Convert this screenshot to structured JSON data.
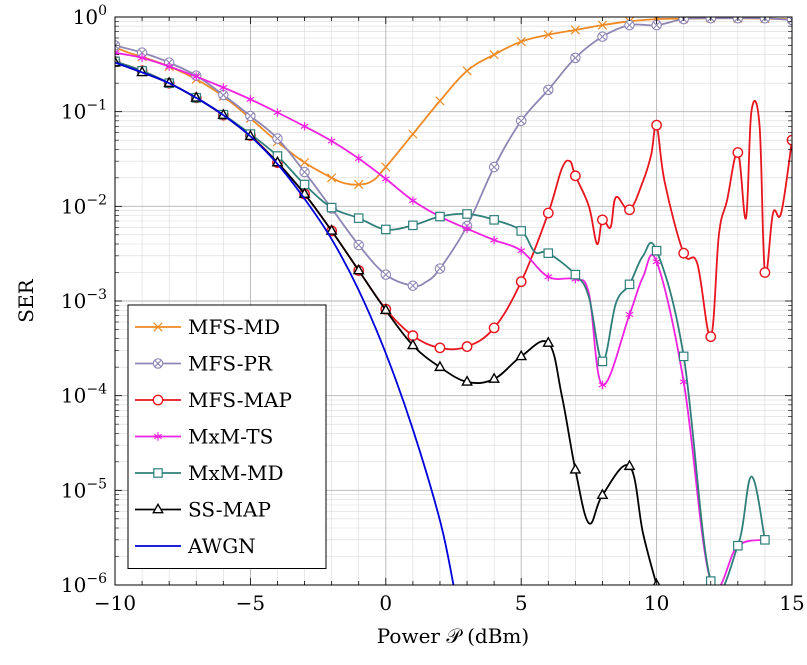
{
  "chart_data": {
    "type": "line",
    "xlabel": "Power 𝒫 (dBm)",
    "ylabel": "SER",
    "xlim": [
      -10,
      15
    ],
    "ylim": [
      1e-06,
      1
    ],
    "yscale": "log",
    "grid": "major and minor",
    "legend_position": "lower-left",
    "xticks": [
      -10,
      -5,
      0,
      5,
      10,
      15
    ],
    "xtick_labels": [
      "−10",
      "−5",
      "0",
      "5",
      "10",
      "15"
    ],
    "yticks": [
      {
        "value": 1,
        "base": "10",
        "exp": "0"
      },
      {
        "value": 0.1,
        "base": "10",
        "exp": "−1"
      },
      {
        "value": 0.01,
        "base": "10",
        "exp": "−2"
      },
      {
        "value": 0.001,
        "base": "10",
        "exp": "−3"
      },
      {
        "value": 0.0001,
        "base": "10",
        "exp": "−4"
      },
      {
        "value": 1e-05,
        "base": "10",
        "exp": "−5"
      },
      {
        "value": 1e-06,
        "base": "10",
        "exp": "−6"
      }
    ],
    "series": [
      {
        "name": "MFS-MD",
        "color": "#f08a24",
        "marker": "x",
        "points": [
          [
            -10,
            0.48
          ],
          [
            -9.5,
            0.42
          ],
          [
            -9,
            0.38
          ],
          [
            -8,
            0.3
          ],
          [
            -7,
            0.22
          ],
          [
            -6,
            0.145
          ],
          [
            -5,
            0.085
          ],
          [
            -4,
            0.048
          ],
          [
            -3,
            0.029
          ],
          [
            -2,
            0.02
          ],
          [
            -1.5,
            0.0175
          ],
          [
            -1,
            0.017
          ],
          [
            -0.5,
            0.0185
          ],
          [
            0,
            0.026
          ],
          [
            1,
            0.058
          ],
          [
            2,
            0.13
          ],
          [
            3,
            0.27
          ],
          [
            4,
            0.4
          ],
          [
            5,
            0.55
          ],
          [
            6,
            0.65
          ],
          [
            7,
            0.73
          ],
          [
            8,
            0.82
          ],
          [
            9,
            0.9
          ],
          [
            10,
            0.95
          ],
          [
            11,
            0.96
          ],
          [
            12,
            0.97
          ],
          [
            13,
            0.97
          ],
          [
            14,
            0.96
          ],
          [
            15,
            0.95
          ]
        ]
      },
      {
        "name": "MFS-PR",
        "color": "#8e86b4",
        "marker": "otimes",
        "points": [
          [
            -10,
            0.5
          ],
          [
            -9,
            0.42
          ],
          [
            -8,
            0.33
          ],
          [
            -7,
            0.24
          ],
          [
            -6,
            0.15
          ],
          [
            -5,
            0.09
          ],
          [
            -4,
            0.052
          ],
          [
            -3,
            0.023
          ],
          [
            -2,
            0.0095
          ],
          [
            -1,
            0.0039
          ],
          [
            0,
            0.0019
          ],
          [
            1,
            0.00145
          ],
          [
            1.5,
            0.0016
          ],
          [
            2,
            0.0022
          ],
          [
            3,
            0.0062
          ],
          [
            4,
            0.026
          ],
          [
            5,
            0.08
          ],
          [
            6,
            0.17
          ],
          [
            7,
            0.37
          ],
          [
            8,
            0.62
          ],
          [
            9,
            0.82
          ],
          [
            10,
            0.82
          ],
          [
            11,
            0.95
          ],
          [
            12,
            0.97
          ],
          [
            13,
            0.97
          ],
          [
            14,
            0.97
          ],
          [
            15,
            0.93
          ]
        ]
      },
      {
        "name": "MFS-MAP",
        "color": "#e8141e",
        "marker": "o",
        "points": [
          [
            -10,
            0.34
          ],
          [
            -9,
            0.27
          ],
          [
            -8,
            0.2
          ],
          [
            -7,
            0.14
          ],
          [
            -6,
            0.092
          ],
          [
            -5,
            0.056
          ],
          [
            -4,
            0.029
          ],
          [
            -3,
            0.0135
          ],
          [
            -2,
            0.0055
          ],
          [
            -1,
            0.0021
          ],
          [
            0,
            0.00082
          ],
          [
            1,
            0.00043
          ],
          [
            2,
            0.00032
          ],
          [
            3,
            0.00033
          ],
          [
            4,
            0.00052
          ],
          [
            5,
            0.0016
          ],
          [
            6,
            0.0085
          ],
          [
            6.5,
            0.025
          ],
          [
            6.8,
            0.03
          ],
          [
            7,
            0.021
          ],
          [
            7.5,
            0.01
          ],
          [
            7.8,
            0.004
          ],
          [
            8,
            0.0072
          ],
          [
            8.3,
            0.006
          ],
          [
            8.5,
            0.0125
          ],
          [
            9,
            0.0092
          ],
          [
            9.5,
            0.0185
          ],
          [
            9.8,
            0.035
          ],
          [
            10,
            0.072
          ],
          [
            10.3,
            0.018
          ],
          [
            11,
            0.0032
          ],
          [
            11.5,
            0.0025
          ],
          [
            12,
            0.00042
          ],
          [
            12.3,
            0.005
          ],
          [
            12.6,
            0.0115
          ],
          [
            13,
            0.037
          ],
          [
            13.3,
            0.0075
          ],
          [
            13.5,
            0.0999
          ],
          [
            13.8,
            0.072
          ],
          [
            14,
            0.002
          ],
          [
            14.3,
            0.0085
          ],
          [
            14.6,
            0.0085
          ],
          [
            15,
            0.05
          ]
        ]
      },
      {
        "name": "MxM-TS",
        "color": "#ee22e0",
        "marker": "asterisk",
        "points": [
          [
            -10,
            0.42
          ],
          [
            -9,
            0.37
          ],
          [
            -8,
            0.3
          ],
          [
            -7,
            0.235
          ],
          [
            -6,
            0.18
          ],
          [
            -5,
            0.135
          ],
          [
            -4,
            0.098
          ],
          [
            -3,
            0.07
          ],
          [
            -2,
            0.049
          ],
          [
            -1,
            0.032
          ],
          [
            0,
            0.0195
          ],
          [
            1,
            0.0115
          ],
          [
            2,
            0.0078
          ],
          [
            3,
            0.0058
          ],
          [
            4,
            0.0044
          ],
          [
            5,
            0.0034
          ],
          [
            6,
            0.0018
          ],
          [
            7,
            0.0017
          ],
          [
            7.5,
            0.0012
          ],
          [
            8,
            0.00013
          ],
          [
            9,
            0.00072
          ],
          [
            9.5,
            0.0018
          ],
          [
            10,
            0.0026
          ],
          [
            11,
            0.00014
          ],
          [
            12,
            1.1e-06
          ],
          [
            13,
            2.6e-06
          ],
          [
            14,
            3e-06
          ]
        ]
      },
      {
        "name": "MxM-MD",
        "color": "#2f7f7a",
        "marker": "square",
        "points": [
          [
            -10,
            0.34
          ],
          [
            -9,
            0.27
          ],
          [
            -8,
            0.2
          ],
          [
            -7,
            0.14
          ],
          [
            -6,
            0.093
          ],
          [
            -5,
            0.058
          ],
          [
            -4,
            0.034
          ],
          [
            -3,
            0.017
          ],
          [
            -2,
            0.0097
          ],
          [
            -1,
            0.0075
          ],
          [
            0,
            0.0057
          ],
          [
            1,
            0.0063
          ],
          [
            2,
            0.0078
          ],
          [
            3,
            0.0083
          ],
          [
            4,
            0.0072
          ],
          [
            5,
            0.0055
          ],
          [
            5.5,
            0.0033
          ],
          [
            6,
            0.0032
          ],
          [
            7,
            0.0019
          ],
          [
            7.5,
            0.0011
          ],
          [
            8,
            0.00023
          ],
          [
            8.5,
            0.00095
          ],
          [
            9,
            0.0015
          ],
          [
            9.5,
            0.003
          ],
          [
            10,
            0.0034
          ],
          [
            11,
            0.00026
          ],
          [
            12,
            1.1e-06
          ],
          [
            13,
            2.6e-06
          ],
          [
            13.5,
            1.4e-05
          ],
          [
            14,
            3e-06
          ]
        ]
      },
      {
        "name": "SS-MAP",
        "color": "#000000",
        "marker": "triangle",
        "points": [
          [
            -10,
            0.33
          ],
          [
            -9,
            0.26
          ],
          [
            -8,
            0.2
          ],
          [
            -7,
            0.14
          ],
          [
            -6,
            0.092
          ],
          [
            -5,
            0.055
          ],
          [
            -4,
            0.029
          ],
          [
            -3,
            0.0135
          ],
          [
            -2,
            0.0055
          ],
          [
            -1,
            0.0021
          ],
          [
            0,
            0.0008
          ],
          [
            1,
            0.00034
          ],
          [
            2,
            0.0002
          ],
          [
            3,
            0.00014
          ],
          [
            4,
            0.00015
          ],
          [
            5,
            0.00026
          ],
          [
            6,
            0.00036
          ],
          [
            6.5,
            0.0001
          ],
          [
            7,
            1.65e-05
          ],
          [
            7.5,
            4.5e-06
          ],
          [
            8,
            8.9e-06
          ],
          [
            9,
            1.8e-05
          ],
          [
            9.5,
            3.5e-06
          ],
          [
            10,
            1e-06
          ]
        ]
      },
      {
        "name": "AWGN",
        "color": "#0000dd",
        "marker": "none",
        "points": [
          [
            -10,
            0.33
          ],
          [
            -9,
            0.26
          ],
          [
            -8,
            0.2
          ],
          [
            -7,
            0.14
          ],
          [
            -6,
            0.092
          ],
          [
            -5,
            0.055
          ],
          [
            -4,
            0.028
          ],
          [
            -3,
            0.012
          ],
          [
            -2,
            0.0045
          ],
          [
            -1,
            0.0013
          ],
          [
            0,
            0.00028
          ],
          [
            1,
            4.4e-05
          ],
          [
            2,
            4.8e-06
          ],
          [
            2.5,
            1e-06
          ]
        ]
      }
    ]
  }
}
